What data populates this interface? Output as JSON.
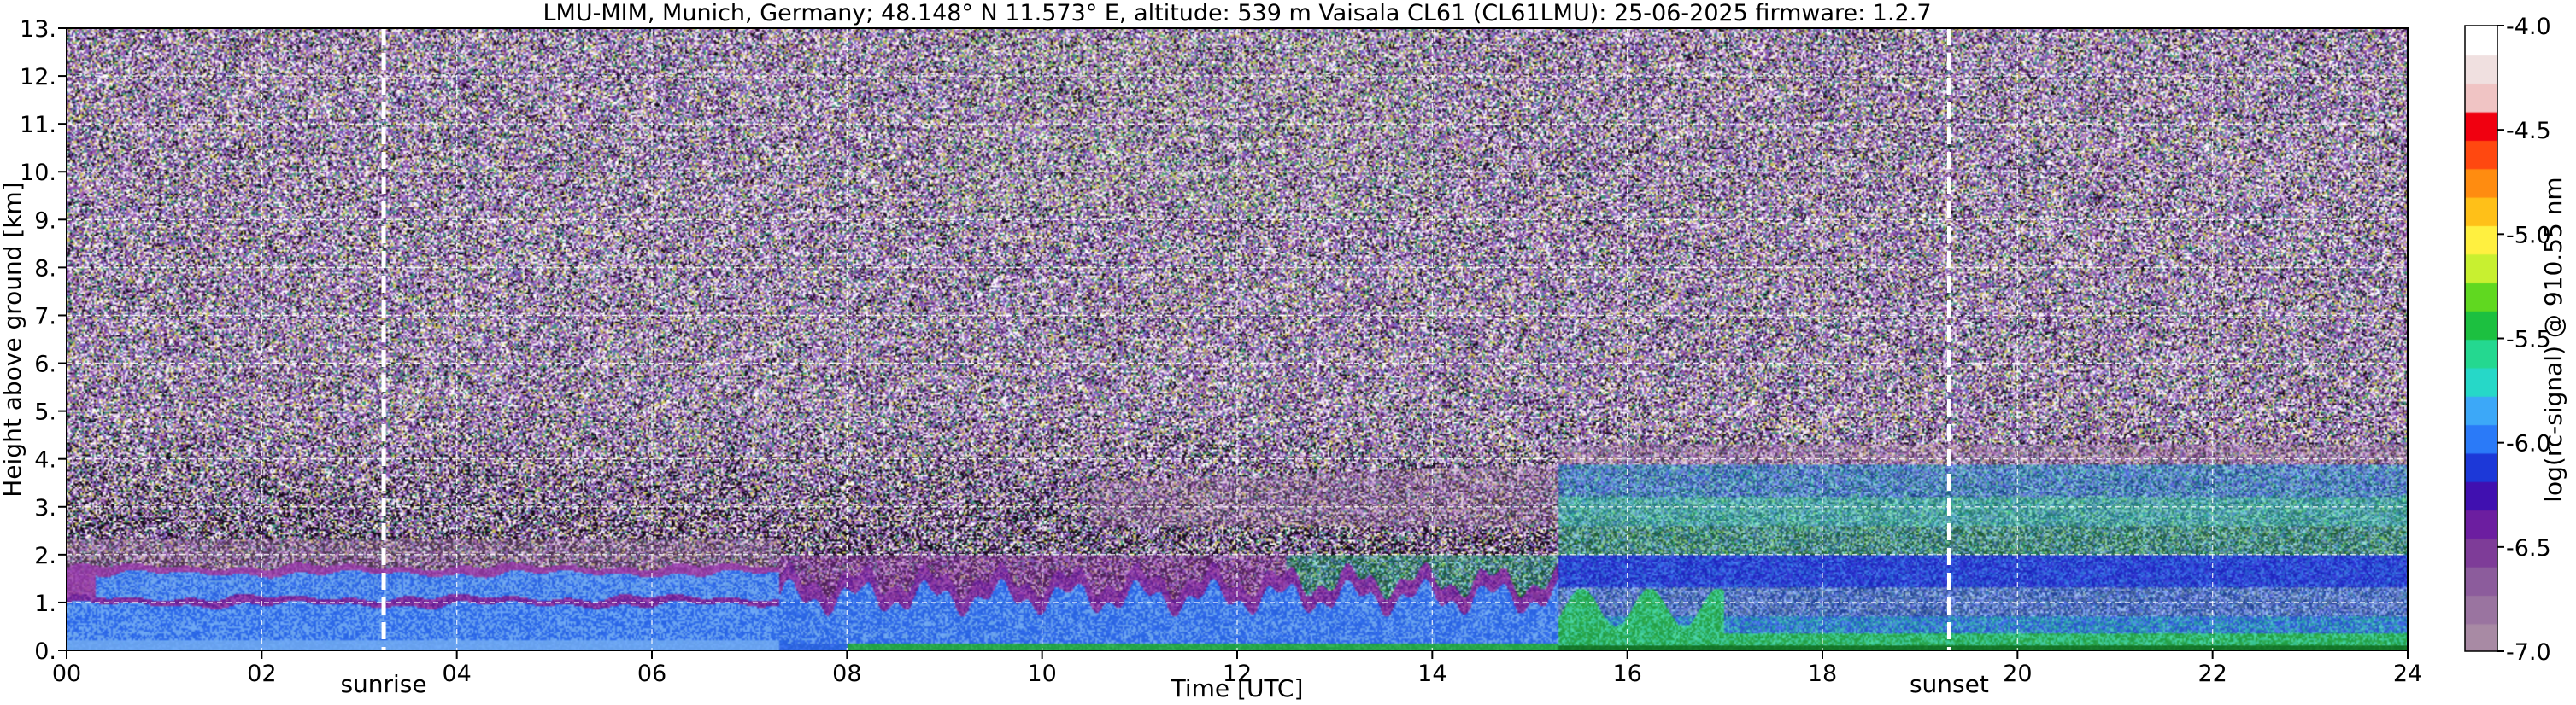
{
  "chart_data": {
    "type": "heatmap",
    "title": "LMU-MIM, Munich, Germany; 48.148° N 11.573° E, altitude: 539 m    Vaisala CL61 (CL61LMU): 25-06-2025    firmware: 1.2.7",
    "xlabel": "Time [UTC]",
    "ylabel": "Height above ground [km]",
    "xlim": [
      0,
      24
    ],
    "ylim": [
      0,
      13
    ],
    "x_ticks": [
      0,
      2,
      4,
      6,
      8,
      10,
      12,
      14,
      16,
      18,
      20,
      22,
      24
    ],
    "x_tick_labels": [
      "00",
      "02",
      "04",
      "06",
      "08",
      "10",
      "12",
      "14",
      "16",
      "18",
      "20",
      "22",
      "24"
    ],
    "y_ticks": [
      0,
      1,
      2,
      3,
      4,
      5,
      6,
      7,
      8,
      9,
      10,
      11,
      12,
      13
    ],
    "y_tick_labels": [
      "0.",
      "1.",
      "2.",
      "3.",
      "4.",
      "5.",
      "6.",
      "7.",
      "8.",
      "9.",
      "10.",
      "11.",
      "12.",
      "13."
    ],
    "grid": true,
    "colorbar": {
      "label": "log(rc-signal) @ 910.55 nm",
      "range": [
        -7.0,
        -4.0
      ],
      "ticks": [
        -7.0,
        -6.5,
        -6.0,
        -5.5,
        -5.0,
        -4.5,
        -4.0
      ],
      "tick_labels": [
        "-7.0",
        "-6.5",
        "-6.0",
        "-5.5",
        "-5.0",
        "-4.5",
        "-4.0"
      ],
      "colors": [
        "#a88aa4",
        "#9a74a0",
        "#8c5c9c",
        "#7e3c98",
        "#6c1ea0",
        "#4010b0",
        "#1c38d8",
        "#2a7af8",
        "#3ca8f8",
        "#26d8c8",
        "#24d890",
        "#1cc040",
        "#60d820",
        "#c8f030",
        "#fff040",
        "#ffc018",
        "#ff8c10",
        "#ff4810",
        "#f00010",
        "#f0c4c4",
        "#f0e0e0",
        "#ffffff"
      ]
    },
    "markers": [
      {
        "label": "sunrise",
        "x": 3.25
      },
      {
        "label": "sunset",
        "x": 19.3
      }
    ],
    "structures": [
      {
        "description": "night boundary layer (blue)",
        "t_start": 0,
        "t_end": 7.5,
        "z_bottom": 0.0,
        "z_top": 1.0
      },
      {
        "description": "residual layer (light blue)",
        "t_start": 0.3,
        "t_end": 7.0,
        "z_bottom": 1.05,
        "z_top": 1.6
      },
      {
        "description": "convective boundary layer",
        "t_start": 7.0,
        "t_end": 15.5,
        "z_bottom": 0.0,
        "z_top": 1.5
      },
      {
        "description": "surface layer (green)",
        "t_start": 15.0,
        "t_end": 24,
        "z_bottom": 0.0,
        "z_top": 0.6
      },
      {
        "description": "residual layer (blue)",
        "t_start": 15.5,
        "t_end": 24,
        "z_bottom": 1.3,
        "z_top": 2.0
      },
      {
        "description": "elevated aerosol layer",
        "t_start": 10.5,
        "t_end": 24,
        "z_bottom": 2.5,
        "z_top": 3.8
      }
    ]
  }
}
